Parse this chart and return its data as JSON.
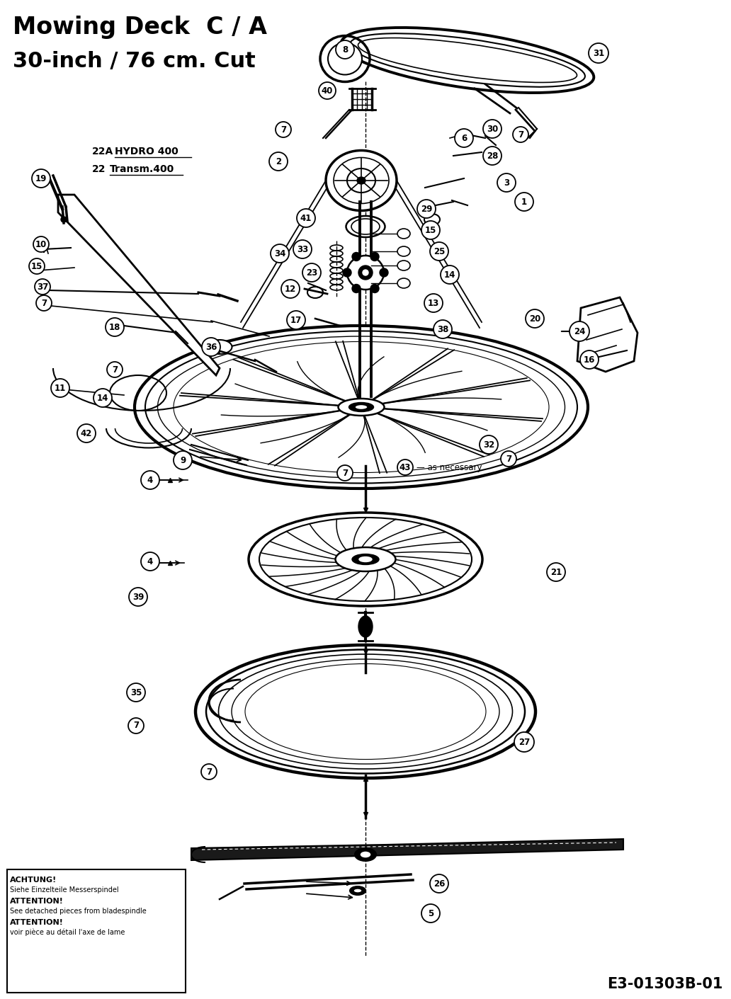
{
  "title_line1": "Mowing Deck  C / A",
  "title_line2": "30-inch / 76 cm. Cut",
  "title_fontsize": 24,
  "subtitle_fontsize": 22,
  "bg_color": "#ffffff",
  "text_color": "#000000",
  "box_text_line1": "ACHTUNG!",
  "box_text_line2": "Siehe Einzelteile Messerspindel",
  "box_text_line3": "ATTENTION!",
  "box_text_line4": "See detached pieces from bladespindle",
  "box_text_line5": "ATTENTION!",
  "box_text_line6": "voir pièce au détail l'axe de lame",
  "bottom_code": "E3-01303B-01",
  "hydro_label": "HYDRO 400",
  "hydro_prefix": "22A",
  "transm_label": "Transm.400",
  "transm_prefix": "22",
  "fig_width": 10.32,
  "fig_height": 14.11
}
